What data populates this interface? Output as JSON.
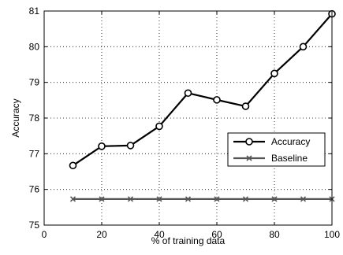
{
  "chart_data": {
    "type": "line",
    "title": "",
    "xlabel": "% of training data",
    "ylabel": "Accuracy",
    "xlim": [
      0,
      100
    ],
    "ylim": [
      75,
      81
    ],
    "xticks": [
      0,
      20,
      40,
      60,
      80,
      100
    ],
    "yticks": [
      75,
      76,
      77,
      78,
      79,
      80,
      81
    ],
    "xtick_labels": [
      "0",
      "20",
      "40",
      "60",
      "80",
      "100"
    ],
    "ytick_labels": [
      "75",
      "76",
      "77",
      "78",
      "79",
      "80",
      "81"
    ],
    "grid": true,
    "legend": "center-right",
    "x": [
      10,
      20,
      30,
      40,
      50,
      60,
      70,
      80,
      90,
      100
    ],
    "series": [
      {
        "name": "Accuracy",
        "marker": "circle",
        "color": "#000000",
        "values": [
          76.67,
          77.21,
          77.23,
          77.77,
          78.7,
          78.51,
          78.33,
          79.25,
          80.0,
          80.92
        ]
      },
      {
        "name": "Baseline",
        "marker": "x",
        "color": "#555555",
        "values": [
          75.73,
          75.73,
          75.73,
          75.73,
          75.73,
          75.73,
          75.73,
          75.73,
          75.73,
          75.73
        ]
      }
    ]
  }
}
